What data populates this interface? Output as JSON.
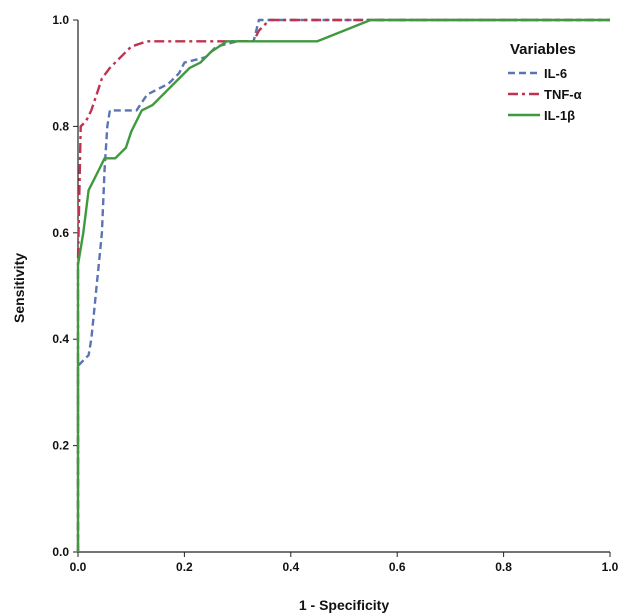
{
  "chart_data": {
    "type": "line",
    "title": "",
    "xlabel": "1 - Specificity",
    "ylabel": "Sensitivity",
    "xlim": [
      0,
      1
    ],
    "ylim": [
      0,
      1
    ],
    "xticks": [
      "0.0",
      "0.2",
      "0.4",
      "0.6",
      "0.8",
      "1.0"
    ],
    "yticks": [
      "0.0",
      "0.2",
      "0.4",
      "0.6",
      "0.8",
      "1.0"
    ],
    "grid": false,
    "legend": {
      "title": "Variables",
      "placement": "top-right"
    },
    "series": [
      {
        "name": "IL-6",
        "color": "#5a74b4",
        "dash": "dashed",
        "points": [
          [
            0,
            0
          ],
          [
            0,
            0.35
          ],
          [
            0.01,
            0.36
          ],
          [
            0.02,
            0.37
          ],
          [
            0.025,
            0.4
          ],
          [
            0.03,
            0.45
          ],
          [
            0.035,
            0.5
          ],
          [
            0.04,
            0.55
          ],
          [
            0.045,
            0.6
          ],
          [
            0.05,
            0.72
          ],
          [
            0.055,
            0.8
          ],
          [
            0.06,
            0.83
          ],
          [
            0.11,
            0.83
          ],
          [
            0.13,
            0.86
          ],
          [
            0.15,
            0.87
          ],
          [
            0.17,
            0.88
          ],
          [
            0.19,
            0.9
          ],
          [
            0.2,
            0.92
          ],
          [
            0.24,
            0.93
          ],
          [
            0.26,
            0.95
          ],
          [
            0.3,
            0.96
          ],
          [
            0.33,
            0.96
          ],
          [
            0.34,
            1.0
          ],
          [
            1.0,
            1.0
          ]
        ]
      },
      {
        "name": "TNF-α",
        "color": "#c0334f",
        "dash": "dashdot",
        "points": [
          [
            0,
            0
          ],
          [
            0,
            0.55
          ],
          [
            0.005,
            0.8
          ],
          [
            0.015,
            0.81
          ],
          [
            0.025,
            0.83
          ],
          [
            0.035,
            0.86
          ],
          [
            0.045,
            0.89
          ],
          [
            0.06,
            0.91
          ],
          [
            0.08,
            0.93
          ],
          [
            0.1,
            0.95
          ],
          [
            0.13,
            0.96
          ],
          [
            0.33,
            0.96
          ],
          [
            0.34,
            0.98
          ],
          [
            0.36,
            1.0
          ],
          [
            1.0,
            1.0
          ]
        ]
      },
      {
        "name": "IL-1β",
        "color": "#3f9a3f",
        "dash": "solid",
        "points": [
          [
            0,
            0
          ],
          [
            0,
            0.54
          ],
          [
            0.01,
            0.6
          ],
          [
            0.02,
            0.68
          ],
          [
            0.03,
            0.7
          ],
          [
            0.04,
            0.72
          ],
          [
            0.05,
            0.74
          ],
          [
            0.07,
            0.74
          ],
          [
            0.09,
            0.76
          ],
          [
            0.1,
            0.79
          ],
          [
            0.12,
            0.83
          ],
          [
            0.14,
            0.84
          ],
          [
            0.17,
            0.87
          ],
          [
            0.19,
            0.89
          ],
          [
            0.21,
            0.91
          ],
          [
            0.23,
            0.92
          ],
          [
            0.25,
            0.94
          ],
          [
            0.28,
            0.96
          ],
          [
            0.45,
            0.96
          ],
          [
            0.55,
            1.0
          ],
          [
            1.0,
            1.0
          ]
        ]
      }
    ]
  }
}
